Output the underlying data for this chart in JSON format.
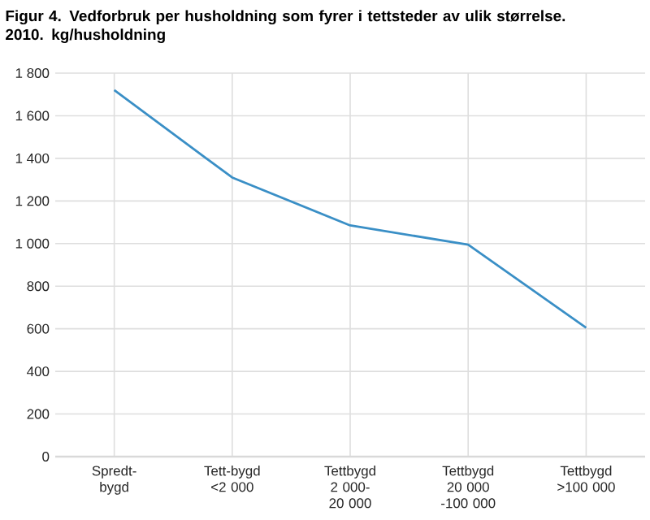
{
  "chart_data": {
    "type": "line",
    "title": "Figur 4. Vedforbruk per husholdning som fyrer i tettsteder av ulik størrelse. 2010. kg/husholdning",
    "categories": [
      "Spredt-bygd",
      "Tett-bygd <2 000",
      "Tettbygd 2 000-20 000",
      "Tettbygd 20 000 -100 000",
      "Tettbygd >100 000"
    ],
    "series": [
      {
        "color": "#3a8fc6",
        "values": [
          1720,
          1310,
          1085,
          995,
          605
        ]
      }
    ],
    "ylim": [
      0,
      1800
    ],
    "yticks": [
      0,
      200,
      400,
      600,
      800,
      {
        "value": 1000,
        "label": "1 000"
      },
      {
        "value": 1200,
        "label": "1 200"
      },
      {
        "value": 1400,
        "label": "1 400"
      },
      {
        "value": 1600,
        "label": "1 600"
      },
      {
        "value": 1800,
        "label": "1 800"
      }
    ],
    "grid": true,
    "marker": "none",
    "line_style": "solid"
  }
}
